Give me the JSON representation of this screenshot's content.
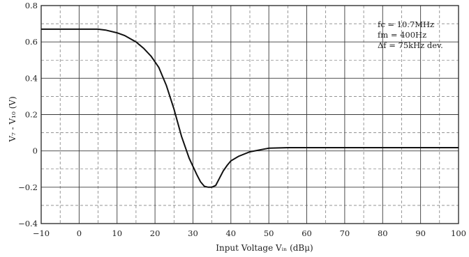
{
  "chart_data": {
    "type": "line",
    "xlabel": "Input Voltage  Vᵢₙ  (dBμ)",
    "ylabel": "V₇ - V₁₀  (V)",
    "xlim": [
      -10,
      100
    ],
    "ylim": [
      -0.4,
      0.8
    ],
    "x_ticks": [
      -10,
      0,
      10,
      20,
      30,
      40,
      50,
      60,
      70,
      80,
      90,
      100
    ],
    "x_tick_labels": [
      "−10",
      "0",
      "10",
      "20",
      "30",
      "40",
      "50",
      "60",
      "70",
      "80",
      "90",
      "100"
    ],
    "y_ticks": [
      0.8,
      0.6,
      0.4,
      0.2,
      0,
      -0.2,
      -0.4
    ],
    "y_tick_labels": [
      "0.8",
      "0.6",
      "0.4",
      "0.2",
      "0",
      "−0.2",
      "−0.4"
    ],
    "grid": true,
    "annotations": [
      "fc = 10.7MHz",
      "fm = 400Hz",
      "Δf = 75kHz dev."
    ],
    "series": [
      {
        "x": [
          -10,
          -5,
          0,
          3,
          5,
          7,
          10,
          12,
          15,
          17,
          19,
          21,
          23,
          25,
          27,
          29,
          31,
          32,
          33,
          34,
          35,
          36,
          37,
          38,
          39,
          40,
          42,
          45,
          50,
          55,
          60,
          70,
          80,
          90,
          100
        ],
        "y": [
          0.67,
          0.67,
          0.67,
          0.67,
          0.67,
          0.665,
          0.65,
          0.635,
          0.6,
          0.565,
          0.52,
          0.46,
          0.36,
          0.23,
          0.08,
          -0.04,
          -0.13,
          -0.17,
          -0.195,
          -0.2,
          -0.2,
          -0.19,
          -0.15,
          -0.11,
          -0.08,
          -0.055,
          -0.03,
          -0.005,
          0.015,
          0.018,
          0.018,
          0.018,
          0.018,
          0.018,
          0.018
        ]
      }
    ]
  }
}
